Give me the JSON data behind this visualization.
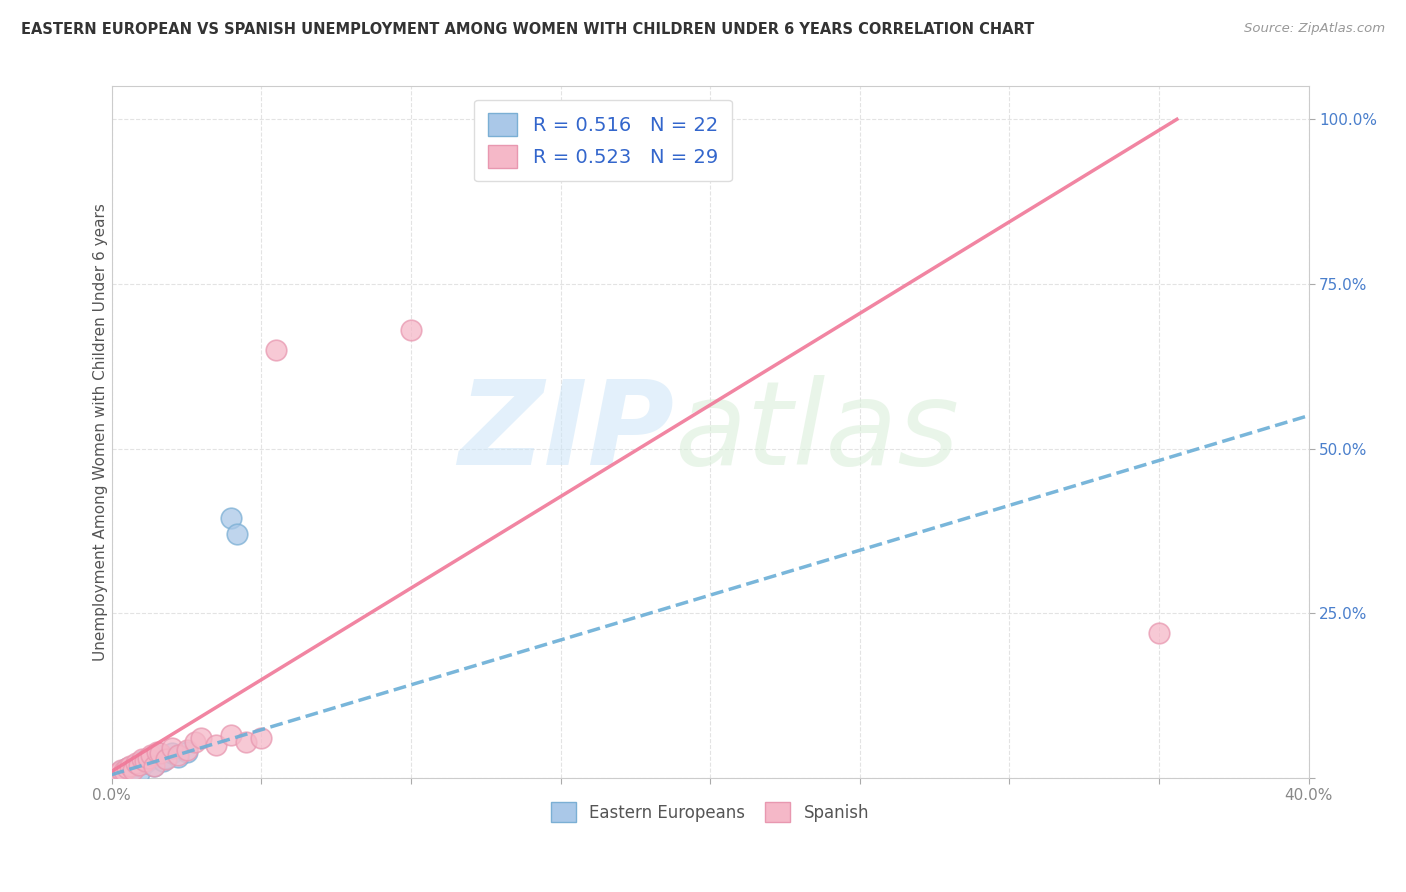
{
  "title": "EASTERN EUROPEAN VS SPANISH UNEMPLOYMENT AMONG WOMEN WITH CHILDREN UNDER 6 YEARS CORRELATION CHART",
  "source": "Source: ZipAtlas.com",
  "ylabel": "Unemployment Among Women with Children Under 6 years",
  "xlim": [
    0.0,
    0.4
  ],
  "ylim": [
    0.0,
    1.05
  ],
  "xtick_vals": [
    0.0,
    0.05,
    0.1,
    0.15,
    0.2,
    0.25,
    0.3,
    0.35,
    0.4
  ],
  "xtick_labels": [
    "0.0%",
    "",
    "",
    "",
    "",
    "",
    "",
    "",
    "40.0%"
  ],
  "ytick_vals": [
    0.0,
    0.25,
    0.5,
    0.75,
    1.0
  ],
  "ytick_labels": [
    "",
    "25.0%",
    "50.0%",
    "75.0%",
    "100.0%"
  ],
  "ee_R": "0.516",
  "ee_N": "22",
  "sp_R": "0.523",
  "sp_N": "29",
  "ee_x": [
    0.001,
    0.002,
    0.003,
    0.004,
    0.005,
    0.006,
    0.007,
    0.008,
    0.009,
    0.01,
    0.011,
    0.012,
    0.013,
    0.014,
    0.015,
    0.017,
    0.018,
    0.02,
    0.022,
    0.025,
    0.04,
    0.042
  ],
  "ee_y": [
    0.005,
    0.008,
    0.01,
    0.012,
    0.015,
    0.01,
    0.018,
    0.02,
    0.008,
    0.025,
    0.022,
    0.03,
    0.028,
    0.018,
    0.035,
    0.025,
    0.03,
    0.038,
    0.032,
    0.04,
    0.395,
    0.37
  ],
  "sp_x": [
    0.001,
    0.002,
    0.003,
    0.004,
    0.005,
    0.006,
    0.007,
    0.008,
    0.009,
    0.01,
    0.011,
    0.012,
    0.013,
    0.014,
    0.015,
    0.016,
    0.018,
    0.02,
    0.022,
    0.025,
    0.028,
    0.03,
    0.035,
    0.04,
    0.045,
    0.05,
    0.055,
    0.1,
    0.35
  ],
  "sp_y": [
    0.005,
    0.008,
    0.012,
    0.01,
    0.015,
    0.018,
    0.012,
    0.022,
    0.02,
    0.028,
    0.025,
    0.03,
    0.035,
    0.018,
    0.04,
    0.038,
    0.028,
    0.045,
    0.035,
    0.042,
    0.055,
    0.06,
    0.05,
    0.065,
    0.055,
    0.06,
    0.65,
    0.68,
    0.22
  ],
  "ee_trend_x": [
    0.0,
    0.4
  ],
  "ee_trend_y": [
    0.005,
    0.55
  ],
  "sp_trend_x": [
    0.0,
    0.356
  ],
  "sp_trend_y": [
    0.01,
    1.0
  ],
  "blue_fill": "#aac8e8",
  "blue_edge": "#7bafd4",
  "pink_fill": "#f5b8c8",
  "pink_edge": "#e898b0",
  "trendline_blue": "#6baed6",
  "trendline_pink": "#f07898",
  "watermark_zip": "#cce5f8",
  "watermark_atlas": "#d8eed8",
  "bg_color": "#ffffff",
  "grid_color": "#e0e0e0",
  "title_color": "#333333",
  "source_color": "#999999",
  "ylabel_color": "#555555",
  "yticklabel_color": "#4a7fcc",
  "xticklabel_color": "#888888"
}
